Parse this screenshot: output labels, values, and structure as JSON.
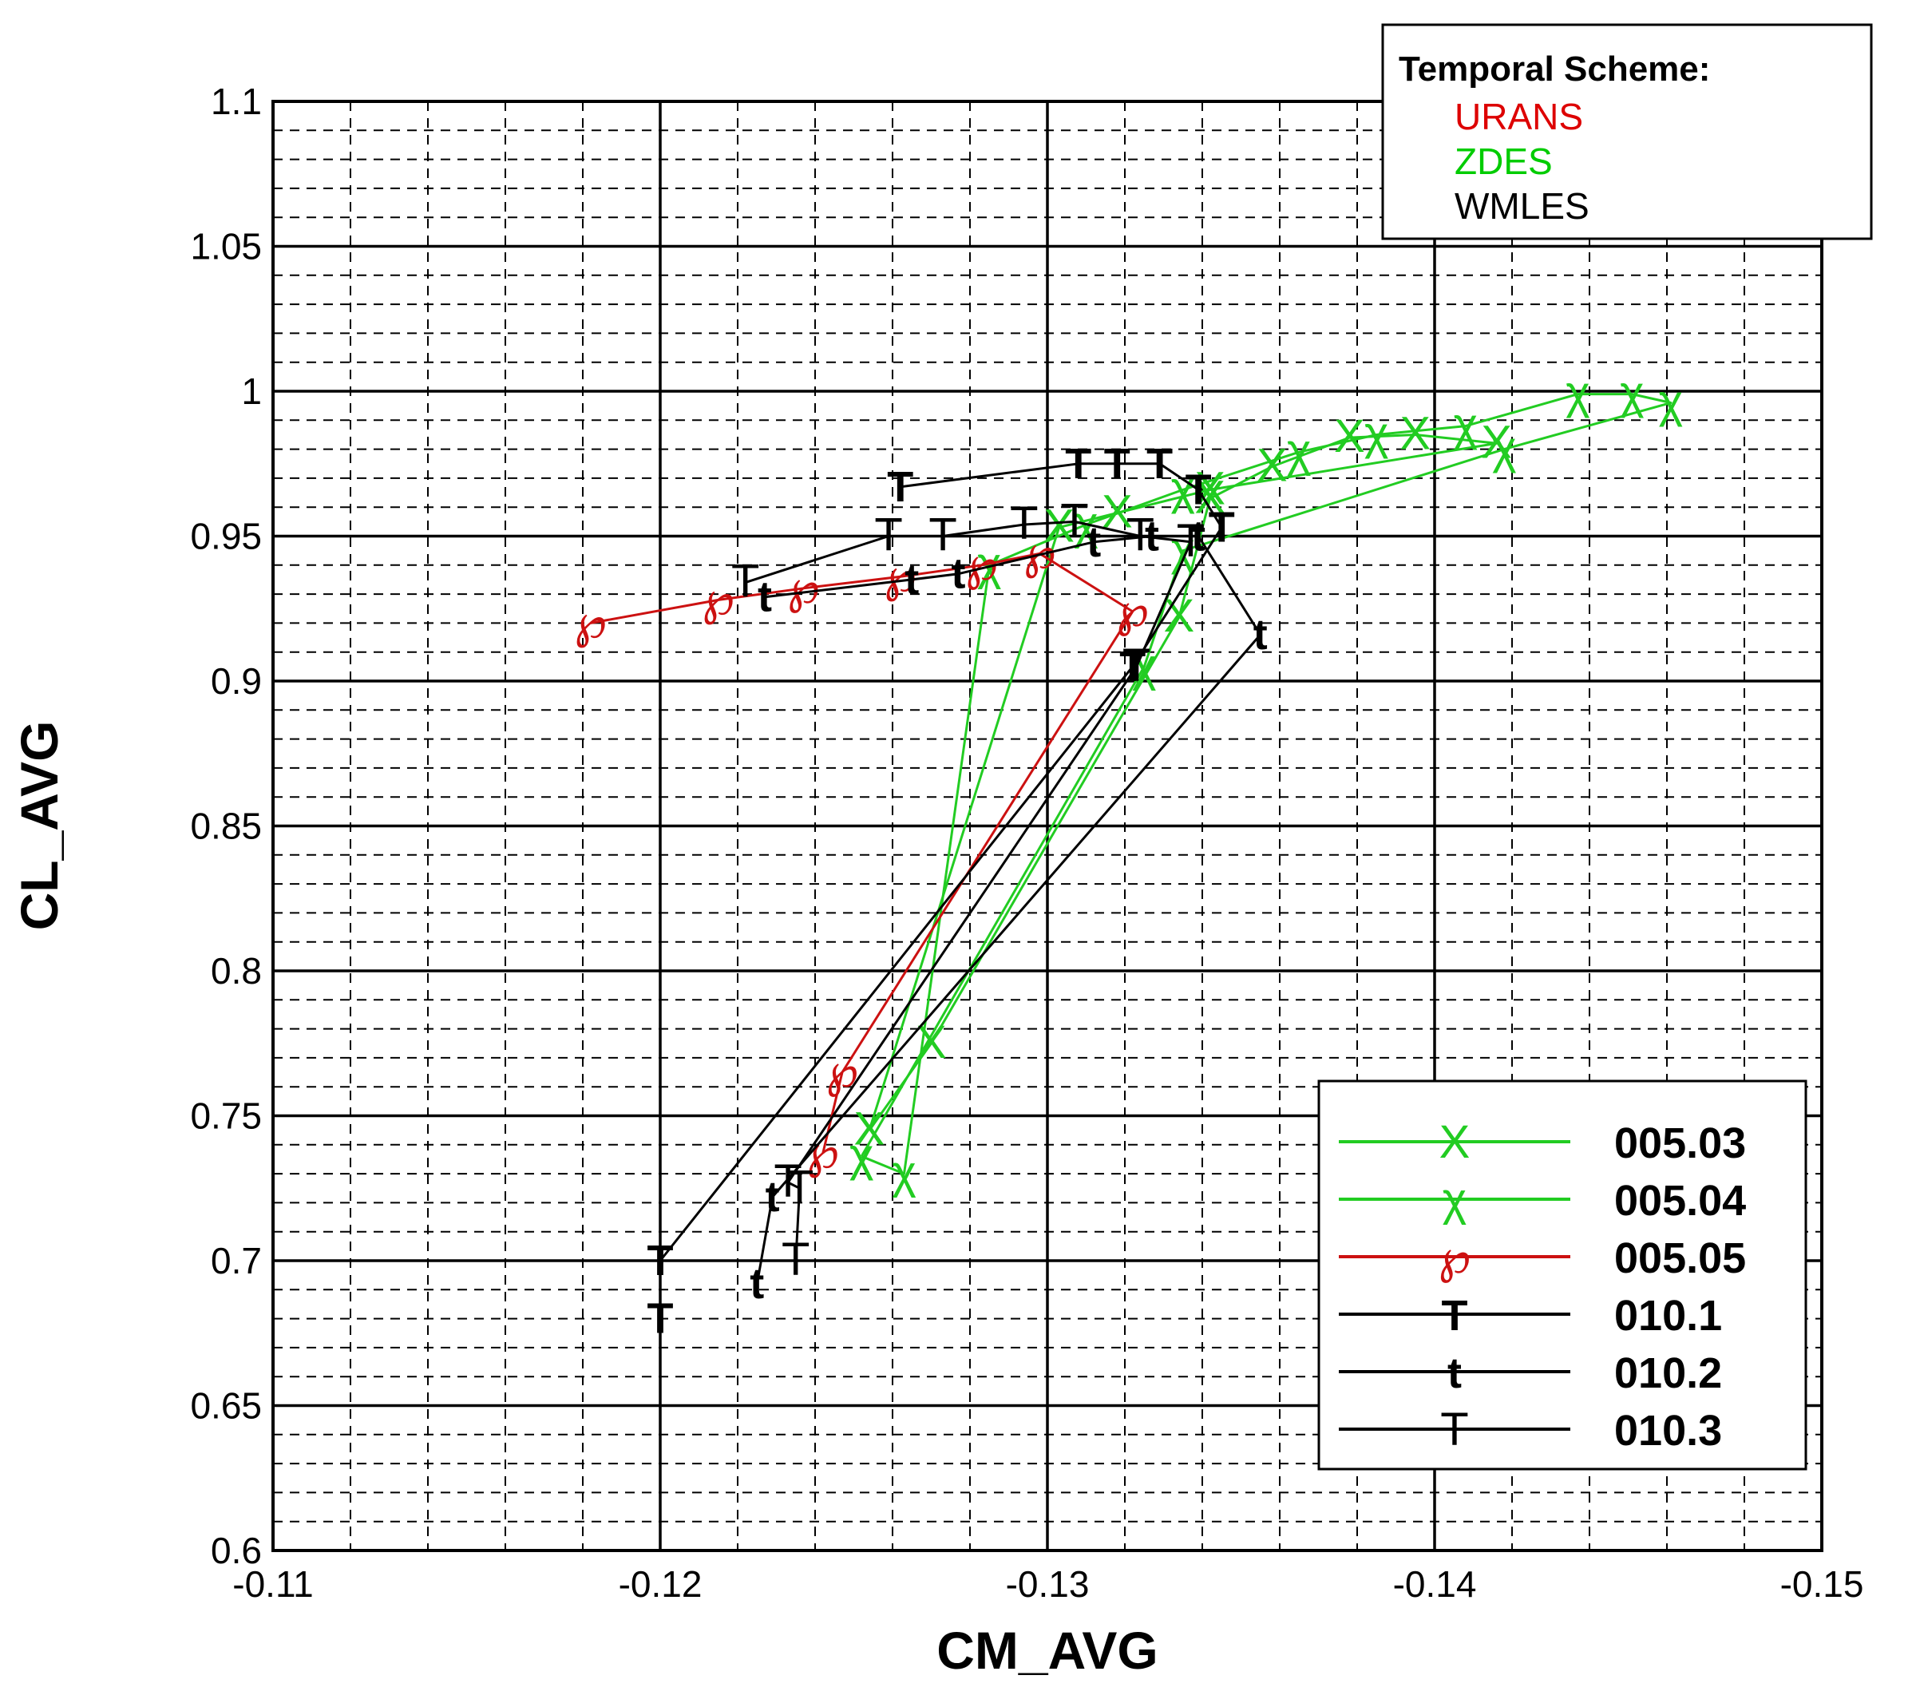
{
  "chart_data": {
    "type": "line",
    "xlabel": "CM_AVG",
    "ylabel": "CL_AVG",
    "xlim": [
      -0.11,
      -0.15
    ],
    "ylim": [
      0.6,
      1.1
    ],
    "x_ticks": [
      -0.11,
      -0.12,
      -0.13,
      -0.14,
      -0.15
    ],
    "y_ticks": [
      0.6,
      0.65,
      0.7,
      0.75,
      0.8,
      0.85,
      0.9,
      0.95,
      1.0,
      1.05,
      1.1
    ],
    "x_tick_labels": [
      "-0.11",
      "-0.12",
      "-0.13",
      "-0.14",
      "-0.15"
    ],
    "y_tick_labels": [
      "0.6",
      "0.65",
      "0.7",
      "0.75",
      "0.8",
      "0.85",
      "0.9",
      "0.95",
      "1",
      "1.05",
      "1.1"
    ],
    "x_minor_step": 0.002,
    "y_minor_step": 0.01,
    "grid": "major solid, minor dashed",
    "scheme_legend": {
      "title": "Temporal Scheme:",
      "placement": "top-right",
      "items": [
        {
          "label": "URANS",
          "color": "#dd0000"
        },
        {
          "label": "ZDES",
          "color": "#00cc00"
        },
        {
          "label": "WMLES",
          "color": "#000000"
        }
      ]
    },
    "legend_placement": "bottom-right",
    "series": [
      {
        "name": "005.03",
        "symbol": "X",
        "color": "#22cc22",
        "symbol_font": "serif",
        "symbol_weight": "normal",
        "x": [
          -0.1254,
          -0.127,
          -0.1334,
          -0.1342,
          -0.1358,
          -0.1378,
          -0.1395,
          -0.1416,
          -0.1342,
          -0.1318,
          -0.1303,
          -0.1254
        ],
        "y": [
          0.745,
          0.775,
          0.922,
          0.963,
          0.974,
          0.984,
          0.985,
          0.982,
          0.966,
          0.958,
          0.953,
          0.745
        ]
      },
      {
        "name": "005.04",
        "symbol": "χ",
        "color": "#22cc22",
        "symbol_font": "serif",
        "symbol_weight": "normal",
        "x": [
          -0.1252,
          -0.1263,
          -0.1285,
          -0.131,
          -0.1335,
          -0.1365,
          -0.1385,
          -0.1408,
          -0.1437,
          -0.1451,
          -0.1461,
          -0.1418,
          -0.1335,
          -0.1325,
          -0.1252
        ],
        "y": [
          0.736,
          0.73,
          0.94,
          0.954,
          0.966,
          0.979,
          0.985,
          0.988,
          0.999,
          0.999,
          0.996,
          0.98,
          0.945,
          0.905,
          0.736
        ]
      },
      {
        "name": "005.05",
        "symbol": "℘",
        "color": "#cc1111",
        "symbol_font": "serif",
        "symbol_weight": "normal",
        "x": [
          -0.1182,
          -0.1215,
          -0.1237,
          -0.1262,
          -0.1283,
          -0.1298,
          -0.1322,
          -0.1247,
          -0.1242
        ],
        "y": [
          0.92,
          0.928,
          0.932,
          0.936,
          0.94,
          0.944,
          0.924,
          0.765,
          0.737
        ]
      },
      {
        "name": "010.1",
        "symbol": "T",
        "color": "#000000",
        "symbol_font": "sans",
        "symbol_weight": "bold",
        "x": [
          -0.1262,
          -0.1308,
          -0.1318,
          -0.1329,
          -0.1339,
          -0.1345,
          -0.1322,
          -0.12,
          -0.12
        ],
        "y": [
          0.967,
          0.975,
          0.975,
          0.975,
          0.966,
          0.953,
          0.905,
          0.7,
          0.68
        ]
      },
      {
        "name": "010.2",
        "symbol": "t",
        "color": "#000000",
        "symbol_font": "sans",
        "symbol_weight": "bold",
        "x": [
          -0.1227,
          -0.1265,
          -0.1277,
          -0.1312,
          -0.1327,
          -0.1339,
          -0.1355,
          -0.1229,
          -0.1225
        ],
        "y": [
          0.929,
          0.935,
          0.937,
          0.948,
          0.95,
          0.95,
          0.916,
          0.722,
          0.692
        ]
      },
      {
        "name": "010.3",
        "symbol": "T",
        "color": "#000000",
        "symbol_font": "serif",
        "symbol_weight": "normal",
        "x": [
          -0.1222,
          -0.1259,
          -0.1273,
          -0.1294,
          -0.1307,
          -0.1324,
          -0.1337,
          -0.1323,
          -0.1233,
          -0.1236,
          -0.1235
        ],
        "y": [
          0.934,
          0.95,
          0.95,
          0.954,
          0.955,
          0.95,
          0.948,
          0.905,
          0.727,
          0.725,
          0.7
        ]
      }
    ]
  }
}
